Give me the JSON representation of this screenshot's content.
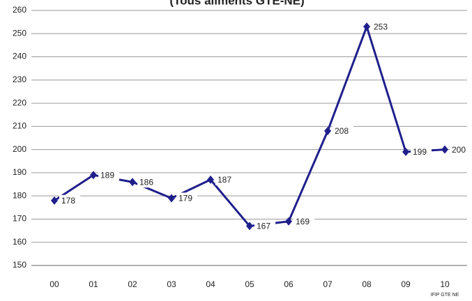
{
  "chart_data": {
    "type": "line",
    "title": "(Tous aliments GTE-NE)",
    "source": "IFIP GTE NE",
    "categories": [
      "00",
      "01",
      "02",
      "03",
      "04",
      "05",
      "06",
      "07",
      "08",
      "09",
      "10"
    ],
    "series": [
      {
        "name": "Tous aliments GTE-NE",
        "color": "#1f1f8c",
        "values": [
          178,
          189,
          186,
          179,
          187,
          167,
          169,
          208,
          253,
          199,
          200
        ]
      }
    ],
    "ylim": [
      150,
      260
    ],
    "yticks": [
      150,
      160,
      170,
      180,
      190,
      200,
      210,
      220,
      230,
      240,
      250,
      260
    ],
    "grid": true
  }
}
